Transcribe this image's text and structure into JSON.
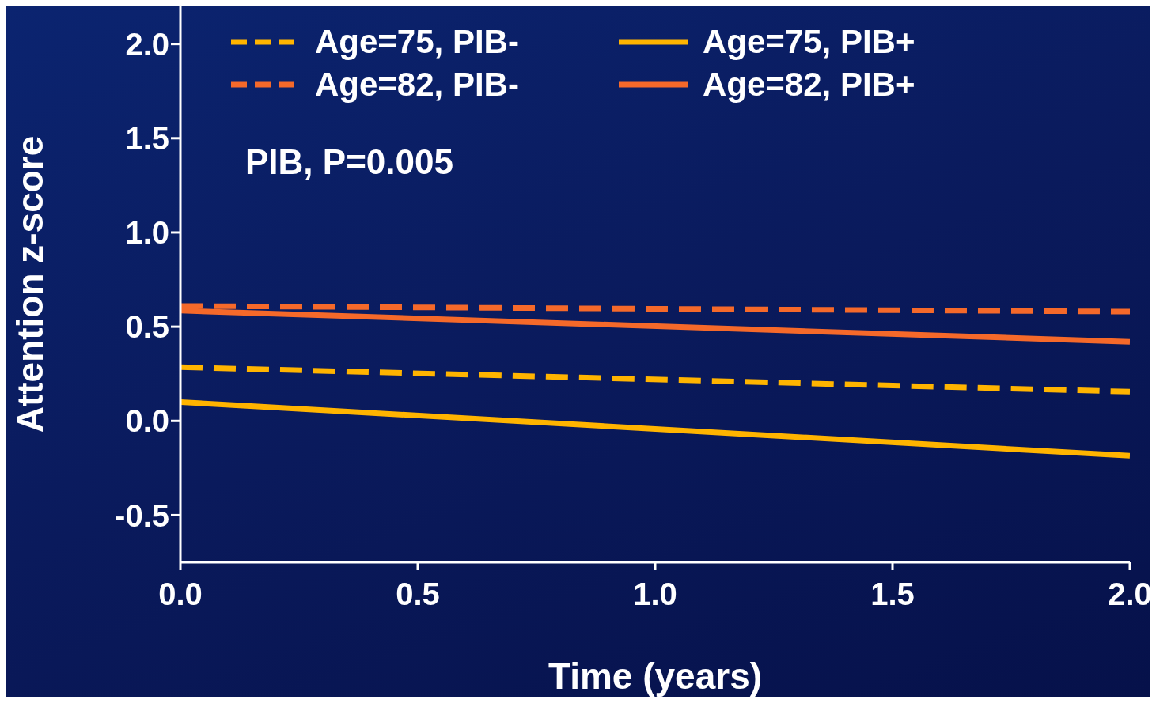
{
  "chart_data": {
    "type": "line",
    "xlabel": "Time (years)",
    "ylabel": "Attention z-score",
    "x": [
      0,
      2
    ],
    "series": [
      {
        "name": "Age=75, PIB-",
        "color": "#ffb400",
        "line_style": "dashed",
        "values": [
          0.285,
          0.155
        ]
      },
      {
        "name": "Age=82, PIB-",
        "color": "#f5692a",
        "line_style": "dashed",
        "values": [
          0.61,
          0.58
        ]
      },
      {
        "name": "Age=75, PIB+",
        "color": "#ffb400",
        "line_style": "solid",
        "values": [
          0.1,
          -0.185
        ]
      },
      {
        "name": "Age=82, PIB+",
        "color": "#f5692a",
        "line_style": "solid",
        "values": [
          0.585,
          0.42
        ]
      }
    ],
    "xlim": [
      0,
      2
    ],
    "xticks": [
      {
        "value": 0,
        "label": "0.0"
      },
      0.5,
      {
        "value": 1,
        "label": "1.0"
      },
      1.5,
      {
        "value": 2,
        "label": "2.0"
      }
    ],
    "ylim": [
      -0.75,
      2.2
    ],
    "yticks": [
      -0.5,
      {
        "value": 0,
        "label": "0.0"
      },
      0.5,
      {
        "value": 1,
        "label": "1.0"
      },
      1.5,
      {
        "value": 2,
        "label": "2.0"
      }
    ],
    "annotations": [
      "PIB, P=0.005"
    ],
    "legend": "top",
    "grid": false,
    "marker": "none"
  }
}
